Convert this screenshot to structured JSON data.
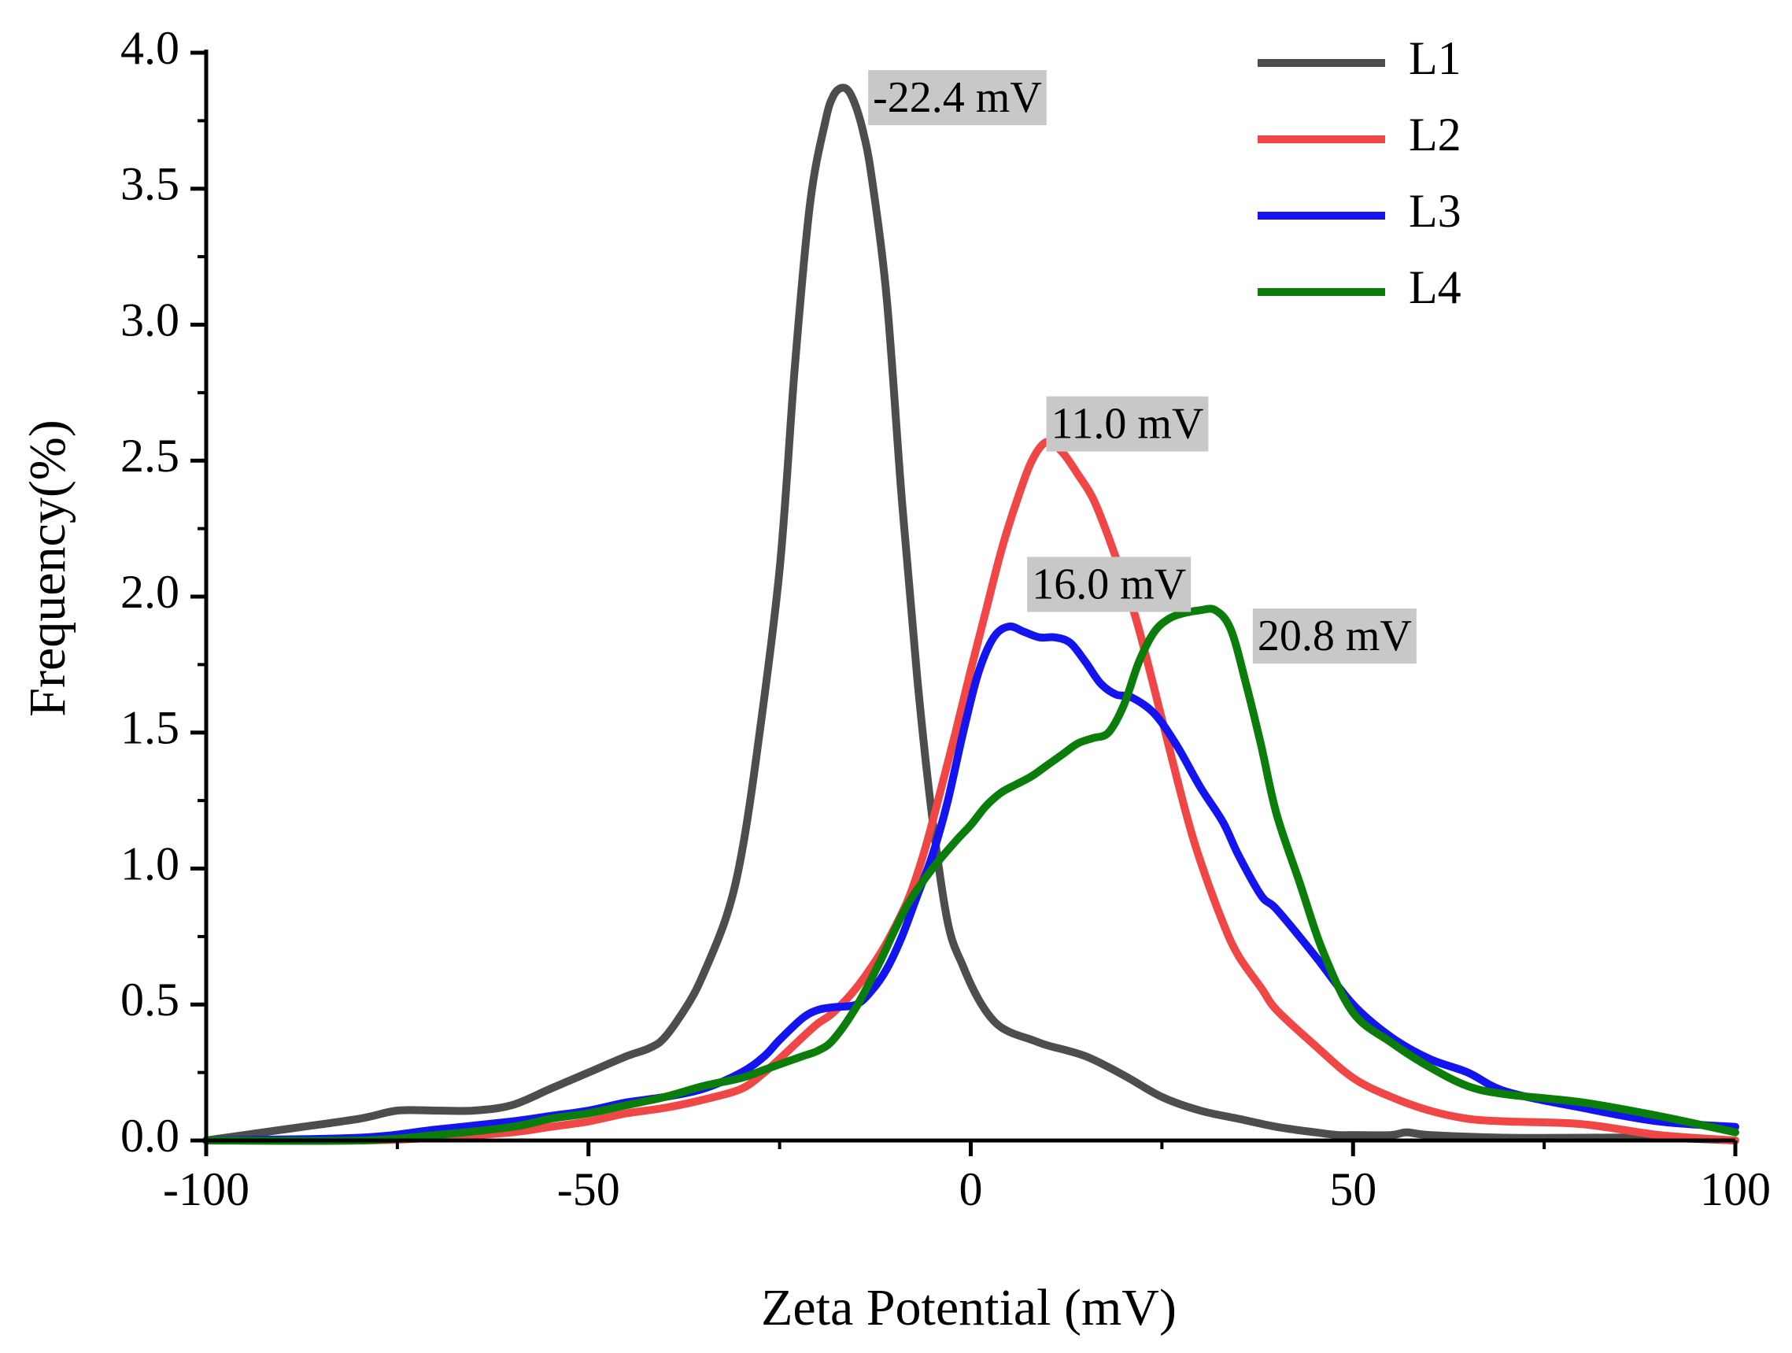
{
  "chart_data": {
    "type": "line",
    "title": "",
    "xlabel": "Zeta Potential (mV)",
    "ylabel": "Frequency(%)",
    "xlim": [
      -100,
      100
    ],
    "ylim": [
      0,
      4.0
    ],
    "x_ticks": [
      -100,
      -50,
      0,
      50,
      100
    ],
    "x_tick_labels": [
      "-100",
      "-50",
      "0",
      "50",
      "100"
    ],
    "y_ticks": [
      0,
      0.5,
      1.0,
      1.5,
      2.0,
      2.5,
      3.0,
      3.5,
      4.0
    ],
    "y_tick_labels": [
      "0.0",
      "0.5",
      "1.0",
      "1.5",
      "2.0",
      "2.5",
      "3.0",
      "3.5",
      "4.0"
    ],
    "grid": false,
    "legend_position": "top-right",
    "series": [
      {
        "name": "L1",
        "color": "#4d4d4d",
        "x": [
          -100,
          -90,
          -80,
          -75,
          -70,
          -65,
          -60,
          -55,
          -50,
          -45,
          -42,
          -40,
          -37,
          -35,
          -32,
          -30,
          -28,
          -25,
          -23,
          -21,
          -19,
          -18,
          -17,
          -16,
          -15,
          -14,
          -13,
          -11,
          -9,
          -7,
          -5,
          -3,
          -1,
          1,
          3,
          5,
          8,
          10,
          15,
          20,
          25,
          30,
          35,
          40,
          45,
          48,
          50,
          55,
          57,
          60,
          70,
          80,
          90,
          100
        ],
        "y": [
          0.0,
          0.04,
          0.08,
          0.11,
          0.11,
          0.11,
          0.13,
          0.19,
          0.25,
          0.31,
          0.34,
          0.38,
          0.5,
          0.61,
          0.82,
          1.05,
          1.42,
          2.1,
          2.85,
          3.45,
          3.75,
          3.84,
          3.87,
          3.86,
          3.8,
          3.7,
          3.55,
          3.1,
          2.35,
          1.7,
          1.18,
          0.8,
          0.64,
          0.52,
          0.44,
          0.4,
          0.37,
          0.35,
          0.31,
          0.24,
          0.16,
          0.11,
          0.08,
          0.05,
          0.03,
          0.02,
          0.02,
          0.02,
          0.03,
          0.02,
          0.01,
          0.01,
          0.01,
          0.0
        ]
      },
      {
        "name": "L2",
        "color": "#f04646",
        "x": [
          -100,
          -80,
          -70,
          -60,
          -55,
          -50,
          -45,
          -40,
          -35,
          -30,
          -27,
          -25,
          -22,
          -20,
          -18,
          -15,
          -12,
          -10,
          -8,
          -6,
          -4,
          -2,
          0,
          2,
          4,
          6,
          8,
          10,
          12,
          14,
          16,
          18,
          20,
          22,
          25,
          28,
          30,
          33,
          35,
          38,
          40,
          45,
          50,
          55,
          60,
          65,
          70,
          80,
          90,
          100
        ],
        "y": [
          0.0,
          0.0,
          0.01,
          0.03,
          0.05,
          0.07,
          0.1,
          0.12,
          0.15,
          0.19,
          0.25,
          0.3,
          0.38,
          0.43,
          0.47,
          0.56,
          0.68,
          0.78,
          0.9,
          1.07,
          1.28,
          1.5,
          1.73,
          1.95,
          2.17,
          2.35,
          2.5,
          2.57,
          2.53,
          2.45,
          2.36,
          2.22,
          2.06,
          1.88,
          1.55,
          1.22,
          1.03,
          0.8,
          0.68,
          0.56,
          0.48,
          0.35,
          0.23,
          0.16,
          0.11,
          0.08,
          0.07,
          0.06,
          0.02,
          0.0
        ]
      },
      {
        "name": "L3",
        "color": "#1414f0",
        "x": [
          -100,
          -80,
          -70,
          -60,
          -55,
          -50,
          -45,
          -40,
          -35,
          -30,
          -27,
          -25,
          -22,
          -20,
          -18,
          -15,
          -13,
          -11,
          -9,
          -7,
          -5,
          -3,
          -1,
          1,
          3,
          5,
          7,
          9,
          11,
          13,
          15,
          17,
          19,
          21,
          24,
          27,
          30,
          33,
          35,
          38,
          40,
          45,
          50,
          55,
          60,
          65,
          70,
          80,
          90,
          100
        ],
        "y": [
          0.0,
          0.01,
          0.04,
          0.07,
          0.09,
          0.11,
          0.14,
          0.16,
          0.19,
          0.25,
          0.31,
          0.37,
          0.45,
          0.48,
          0.49,
          0.5,
          0.55,
          0.63,
          0.75,
          0.9,
          1.05,
          1.25,
          1.5,
          1.72,
          1.85,
          1.89,
          1.87,
          1.85,
          1.85,
          1.83,
          1.76,
          1.68,
          1.64,
          1.63,
          1.57,
          1.45,
          1.3,
          1.17,
          1.05,
          0.9,
          0.85,
          0.68,
          0.5,
          0.38,
          0.3,
          0.25,
          0.18,
          0.12,
          0.07,
          0.05
        ]
      },
      {
        "name": "L4",
        "color": "#0a7d0a",
        "x": [
          -100,
          -80,
          -70,
          -60,
          -55,
          -50,
          -45,
          -40,
          -35,
          -30,
          -27,
          -25,
          -22,
          -20,
          -18,
          -15,
          -12,
          -10,
          -8,
          -5,
          -2,
          0,
          2,
          4,
          6,
          8,
          10,
          12,
          14,
          16,
          18,
          20,
          22,
          24,
          26,
          28,
          30,
          32,
          34,
          36,
          38,
          40,
          43,
          46,
          50,
          55,
          60,
          65,
          70,
          80,
          90,
          100
        ],
        "y": [
          0.0,
          0.0,
          0.02,
          0.05,
          0.08,
          0.1,
          0.13,
          0.16,
          0.2,
          0.23,
          0.26,
          0.28,
          0.31,
          0.33,
          0.37,
          0.49,
          0.65,
          0.77,
          0.88,
          1.0,
          1.1,
          1.16,
          1.23,
          1.28,
          1.31,
          1.34,
          1.38,
          1.42,
          1.46,
          1.48,
          1.5,
          1.6,
          1.76,
          1.87,
          1.92,
          1.94,
          1.95,
          1.95,
          1.88,
          1.68,
          1.45,
          1.2,
          0.95,
          0.7,
          0.47,
          0.36,
          0.27,
          0.2,
          0.17,
          0.14,
          0.09,
          0.03
        ]
      }
    ],
    "annotations": [
      {
        "text": "-22.4 mV",
        "x": -12.8,
        "y": 3.82
      },
      {
        "text": "11.0 mV",
        "x": 10.5,
        "y": 2.62
      },
      {
        "text": "16.0 mV",
        "x": 8.0,
        "y": 2.03
      },
      {
        "text": "20.8 mV",
        "x": 37.5,
        "y": 1.84
      }
    ],
    "annotation_bg": "#c8c8c8"
  }
}
